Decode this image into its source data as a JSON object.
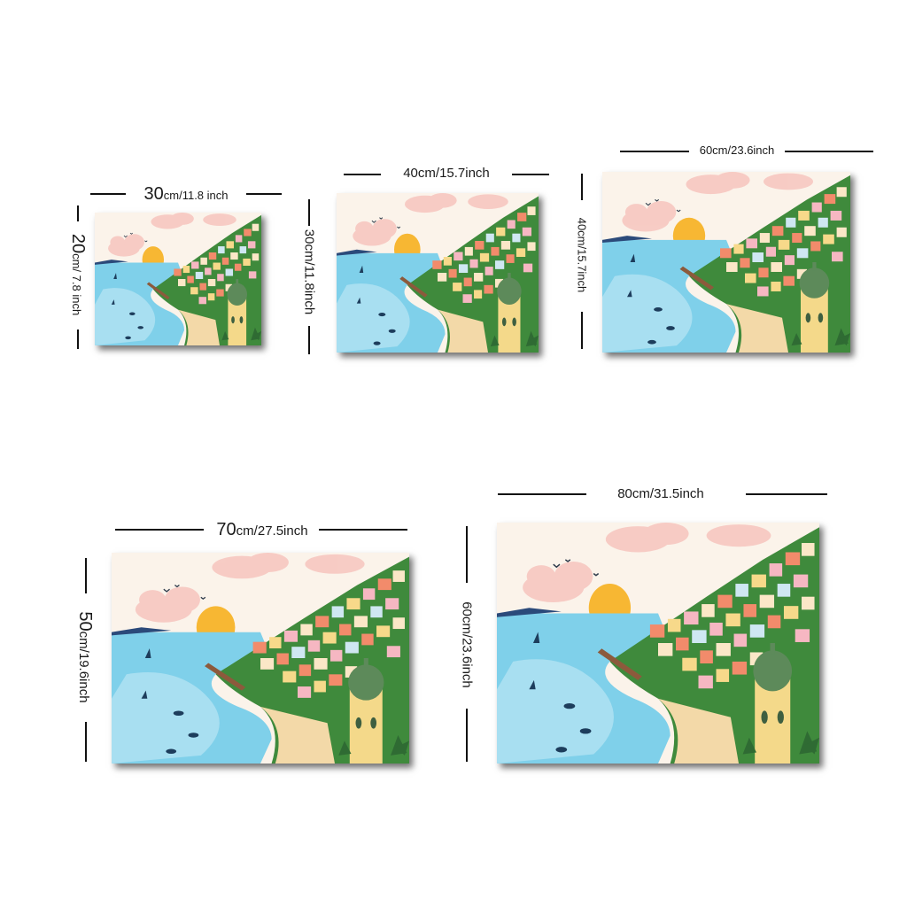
{
  "sizes": [
    {
      "width_value": "30",
      "width_unit": "cm/",
      "width_inch": "11.8 inch",
      "height_value": "20",
      "height_unit": "cm",
      "height_inch": "/ 7.8 inch"
    },
    {
      "width_label": "40cm/15.7inch",
      "height_label": "30cm/11.8inch"
    },
    {
      "width_label": "60cm/23.6inch",
      "height_label": "40cm/15.7inch"
    },
    {
      "width_value": "70",
      "width_unit": "cm/",
      "width_inch": "27.5inch",
      "height_value": "50",
      "height_unit": "cm/",
      "height_inch": "19.6inch"
    },
    {
      "width_label": "80cm/31.5inch",
      "height_label": "60cm/23.6inch"
    }
  ],
  "artwork": {
    "subject": "Positano coastal village painting",
    "colors": {
      "sky": "#fbf3ea",
      "sea": "#7fd0ea",
      "sea_light": "#b9e6f4",
      "sun": "#f7b733",
      "cloud": "#f7c7c4",
      "hill": "#3f8a3c",
      "sand": "#f3d9a8",
      "dome": "#5d8a5a",
      "tower": "#f4d98a"
    }
  }
}
